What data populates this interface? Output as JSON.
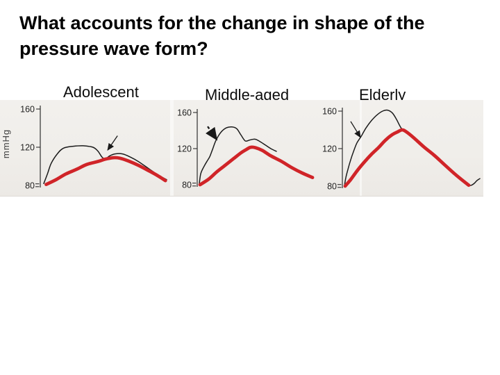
{
  "title": {
    "line1": "What accounts for the change in shape of the",
    "line2": "pressure wave form?"
  },
  "figure": {
    "unit_label": "mmHg",
    "panels": [
      {
        "label": "Adolescent"
      },
      {
        "label": "Middle-aged"
      },
      {
        "label": "Elderly"
      }
    ]
  },
  "colors": {
    "red_wave": "#d02428",
    "thin_wave": "#1b1b1b",
    "axis": "#2e2e2e",
    "scan_background": "#f0eeea"
  },
  "chart_data": [
    {
      "type": "line",
      "title": "Adolescent",
      "xlabel": "",
      "ylabel": "mmHg",
      "yticks": [
        160,
        120,
        80
      ],
      "ylim": [
        78,
        165
      ],
      "series": [
        {
          "name": "thin-black-wave",
          "color": "#1b1b1b",
          "points": [
            [
              0,
              82
            ],
            [
              0.03,
              92
            ],
            [
              0.06,
              103
            ],
            [
              0.11,
              113
            ],
            [
              0.16,
              119
            ],
            [
              0.24,
              121
            ],
            [
              0.32,
              121.5
            ],
            [
              0.4,
              120
            ],
            [
              0.44,
              116
            ],
            [
              0.475,
              109.5
            ],
            [
              0.503,
              108
            ],
            [
              0.537,
              111
            ],
            [
              0.58,
              113
            ],
            [
              0.64,
              113
            ],
            [
              0.7,
              110
            ],
            [
              0.77,
              105
            ],
            [
              0.86,
              97
            ],
            [
              0.93,
              91
            ],
            [
              1,
              86
            ]
          ]
        },
        {
          "name": "thick-red-wave",
          "color": "#d02428",
          "points": [
            [
              0.02,
              81
            ],
            [
              0.1,
              86
            ],
            [
              0.18,
              92
            ],
            [
              0.27,
              97
            ],
            [
              0.35,
              102
            ],
            [
              0.44,
              105
            ],
            [
              0.5,
              107.5
            ],
            [
              0.565,
              109
            ],
            [
              0.62,
              108.5
            ],
            [
              0.69,
              105.5
            ],
            [
              0.77,
              101
            ],
            [
              0.86,
              95
            ],
            [
              0.93,
              90
            ],
            [
              0.99,
              85
            ]
          ]
        }
      ],
      "arrow": {
        "from": [
          0.6,
          132
        ],
        "to": [
          0.52,
          117
        ],
        "dashed": false
      }
    },
    {
      "type": "line",
      "title": "Middle-aged",
      "xlabel": "",
      "ylabel": "mmHg",
      "yticks": [
        160,
        120,
        80
      ],
      "ylim": [
        78,
        165
      ],
      "series": [
        {
          "name": "thin-black-wave",
          "color": "#1b1b1b",
          "points": [
            [
              0,
              81
            ],
            [
              0.012,
              92
            ],
            [
              0.036,
              99
            ],
            [
              0.067,
              106
            ],
            [
              0.091,
              111
            ],
            [
              0.115,
              119
            ],
            [
              0.145,
              129
            ],
            [
              0.188,
              138
            ],
            [
              0.236,
              143
            ],
            [
              0.285,
              144
            ],
            [
              0.327,
              142
            ],
            [
              0.364,
              135
            ],
            [
              0.402,
              128.5
            ],
            [
              0.44,
              129.5
            ],
            [
              0.485,
              130.5
            ],
            [
              0.527,
              128
            ],
            [
              0.576,
              124
            ],
            [
              0.624,
              120
            ],
            [
              0.673,
              117
            ]
          ]
        },
        {
          "name": "thick-red-wave",
          "color": "#d02428",
          "points": [
            [
              0.006,
              80
            ],
            [
              0.08,
              86
            ],
            [
              0.15,
              94
            ],
            [
              0.22,
              101
            ],
            [
              0.3,
              109
            ],
            [
              0.36,
              115
            ],
            [
              0.41,
              119
            ],
            [
              0.448,
              121.5
            ],
            [
              0.49,
              121
            ],
            [
              0.55,
              118
            ],
            [
              0.624,
              112
            ],
            [
              0.715,
              106
            ],
            [
              0.806,
              99
            ],
            [
              0.897,
              93
            ],
            [
              0.988,
              88
            ]
          ]
        }
      ],
      "arrow": {
        "from": [
          0.073,
          144.5
        ],
        "to": [
          0.152,
          130
        ],
        "dashed": true
      }
    },
    {
      "type": "line",
      "title": "Elderly",
      "xlabel": "",
      "ylabel": "mmHg",
      "yticks": [
        160,
        120,
        80
      ],
      "ylim": [
        78,
        165
      ],
      "series": [
        {
          "name": "thin-black-wave",
          "color": "#1b1b1b",
          "points": [
            [
              0,
              80
            ],
            [
              0.01,
              89
            ],
            [
              0.026,
              98
            ],
            [
              0.046,
              108
            ],
            [
              0.067,
              117
            ],
            [
              0.092,
              126
            ],
            [
              0.123,
              133
            ],
            [
              0.159,
              142
            ],
            [
              0.2,
              150
            ],
            [
              0.241,
              156
            ],
            [
              0.282,
              160
            ],
            [
              0.318,
              161
            ],
            [
              0.354,
              158
            ],
            [
              0.385,
              151
            ],
            [
              0.41,
              144
            ],
            [
              0.431,
              140
            ],
            [
              0.508,
              132
            ],
            [
              0.585,
              122
            ],
            [
              0.662,
              113
            ],
            [
              0.738,
              103
            ],
            [
              0.815,
              93
            ],
            [
              0.882,
              85
            ],
            [
              0.918,
              81
            ],
            [
              0.938,
              81
            ],
            [
              0.959,
              83
            ],
            [
              0.979,
              86
            ],
            [
              1,
              88
            ]
          ]
        },
        {
          "name": "thick-red-wave",
          "color": "#d02428",
          "points": [
            [
              0.005,
              80
            ],
            [
              0.046,
              87
            ],
            [
              0.097,
              97
            ],
            [
              0.149,
              106
            ],
            [
              0.2,
              114
            ],
            [
              0.251,
              121
            ],
            [
              0.303,
              129
            ],
            [
              0.354,
              135
            ],
            [
              0.395,
              138
            ],
            [
              0.426,
              140
            ],
            [
              0.456,
              138
            ],
            [
              0.508,
              132
            ],
            [
              0.585,
              122
            ],
            [
              0.662,
              113
            ],
            [
              0.738,
              103
            ],
            [
              0.815,
              93
            ],
            [
              0.882,
              85
            ],
            [
              0.918,
              81
            ]
          ]
        }
      ],
      "arrow": {
        "from": [
          0.046,
          149
        ],
        "to": [
          0.118,
          132
        ],
        "dashed": false
      }
    }
  ]
}
